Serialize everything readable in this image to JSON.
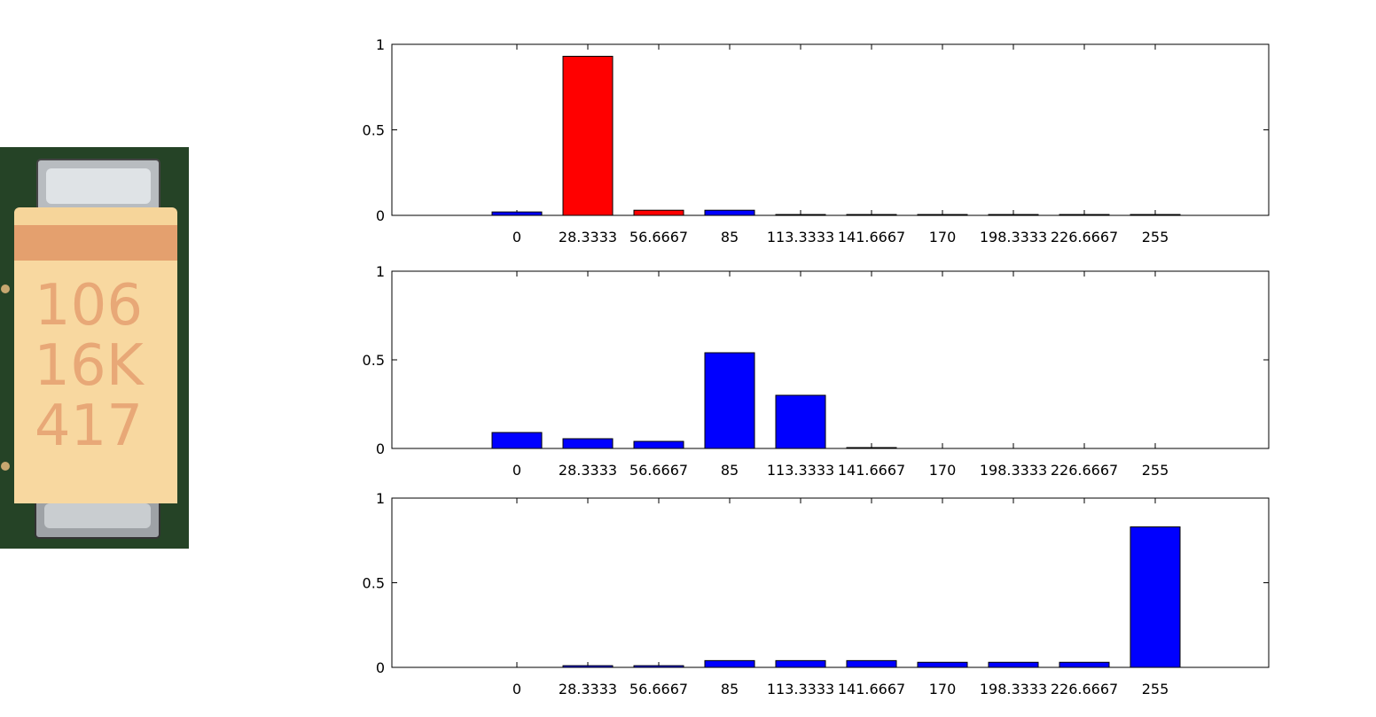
{
  "photo": {
    "marking_lines": [
      "106",
      "16K",
      "417"
    ]
  },
  "chart_data": [
    {
      "type": "bar",
      "categories": [
        "0",
        "28.3333",
        "56.6667",
        "85",
        "113.3333",
        "141.6667",
        "170",
        "198.3333",
        "226.6667",
        "255"
      ],
      "values": [
        0.02,
        0.93,
        0.03,
        0.03,
        0.005,
        0.005,
        0.005,
        0.005,
        0.005,
        0.005
      ],
      "colors": [
        "#0000ff",
        "#ff0000",
        "#ff0000",
        "#0000ff",
        "#0000ff",
        "#0000ff",
        "#0000ff",
        "#0000ff",
        "#0000ff",
        "#0000ff"
      ],
      "yticks": [
        "0",
        "0.5",
        "1"
      ],
      "ylim": [
        0,
        1
      ],
      "xlabel": "",
      "ylabel": "",
      "title": ""
    },
    {
      "type": "bar",
      "categories": [
        "0",
        "28.3333",
        "56.6667",
        "85",
        "113.3333",
        "141.6667",
        "170",
        "198.3333",
        "226.6667",
        "255"
      ],
      "values": [
        0.09,
        0.055,
        0.04,
        0.54,
        0.3,
        0.005,
        0,
        0,
        0,
        0
      ],
      "colors": [
        "#0000ff",
        "#0000ff",
        "#0000ff",
        "#0000ff",
        "#0000ff",
        "#0000ff",
        "#0000ff",
        "#0000ff",
        "#0000ff",
        "#0000ff"
      ],
      "yticks": [
        "0",
        "0.5",
        "1"
      ],
      "ylim": [
        0,
        1
      ],
      "xlabel": "",
      "ylabel": "",
      "title": ""
    },
    {
      "type": "bar",
      "categories": [
        "0",
        "28.3333",
        "56.6667",
        "85",
        "113.3333",
        "141.6667",
        "170",
        "198.3333",
        "226.6667",
        "255"
      ],
      "values": [
        0,
        0.01,
        0.01,
        0.04,
        0.04,
        0.04,
        0.03,
        0.03,
        0.03,
        0.83
      ],
      "colors": [
        "#0000ff",
        "#0000ff",
        "#0000ff",
        "#0000ff",
        "#0000ff",
        "#0000ff",
        "#0000ff",
        "#0000ff",
        "#0000ff",
        "#0000ff"
      ],
      "yticks": [
        "0",
        "0.5",
        "1"
      ],
      "ylim": [
        0,
        1
      ],
      "xlabel": "",
      "ylabel": "",
      "title": ""
    }
  ]
}
